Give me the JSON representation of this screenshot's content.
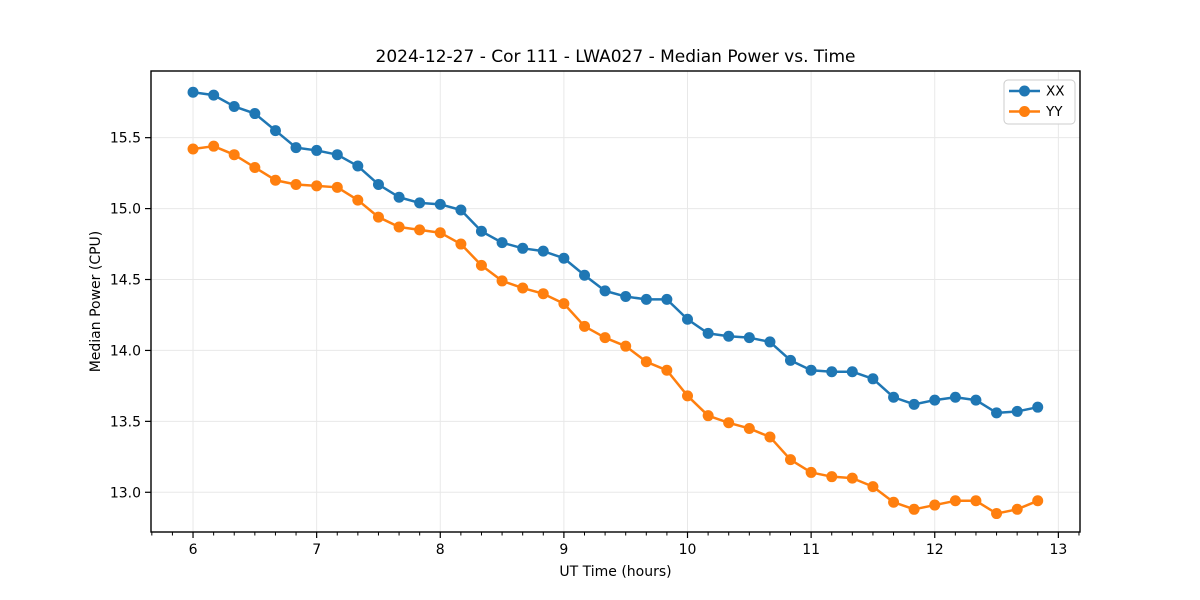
{
  "chart_data": {
    "type": "line",
    "title": "2024-12-27 - Cor 111 - LWA027 - Median Power vs. Time",
    "xlabel": "UT Time (hours)",
    "ylabel": "Median Power (CPU)",
    "xlim": [
      5.66,
      13.175
    ],
    "ylim": [
      12.72,
      15.97
    ],
    "grid": true,
    "legend_position": "upper right",
    "x_ticks": [
      6,
      7,
      8,
      9,
      10,
      11,
      12,
      13
    ],
    "x_tick_labels": [
      "6",
      "7",
      "8",
      "9",
      "10",
      "11",
      "12",
      "13"
    ],
    "x_minor_tick_step": 0.16667,
    "y_ticks": [
      13.0,
      13.5,
      14.0,
      14.5,
      15.0,
      15.5
    ],
    "y_tick_labels": [
      "13.0",
      "13.5",
      "14.0",
      "14.5",
      "15.0",
      "15.5"
    ],
    "x": [
      6.0,
      6.167,
      6.333,
      6.5,
      6.667,
      6.833,
      7.0,
      7.167,
      7.333,
      7.5,
      7.667,
      7.833,
      8.0,
      8.167,
      8.333,
      8.5,
      8.667,
      8.833,
      9.0,
      9.167,
      9.333,
      9.5,
      9.667,
      9.833,
      10.0,
      10.167,
      10.333,
      10.5,
      10.667,
      10.833,
      11.0,
      11.167,
      11.333,
      11.5,
      11.667,
      11.833,
      12.0,
      12.167,
      12.333,
      12.5,
      12.667,
      12.833
    ],
    "series": [
      {
        "name": "XX",
        "color": "#1f77b4",
        "values": [
          15.82,
          15.8,
          15.72,
          15.67,
          15.55,
          15.43,
          15.41,
          15.38,
          15.3,
          15.17,
          15.08,
          15.04,
          15.03,
          14.99,
          14.84,
          14.76,
          14.72,
          14.7,
          14.65,
          14.53,
          14.42,
          14.38,
          14.36,
          14.36,
          14.22,
          14.12,
          14.1,
          14.09,
          14.06,
          13.93,
          13.86,
          13.85,
          13.85,
          13.8,
          13.67,
          13.62,
          13.65,
          13.67,
          13.65,
          13.56,
          13.57,
          13.6
        ]
      },
      {
        "name": "YY",
        "color": "#ff7f0e",
        "values": [
          15.42,
          15.44,
          15.38,
          15.29,
          15.2,
          15.17,
          15.16,
          15.15,
          15.06,
          14.94,
          14.87,
          14.85,
          14.83,
          14.75,
          14.6,
          14.49,
          14.44,
          14.4,
          14.33,
          14.17,
          14.09,
          14.03,
          13.92,
          13.86,
          13.68,
          13.54,
          13.49,
          13.45,
          13.39,
          13.23,
          13.14,
          13.11,
          13.1,
          13.04,
          12.93,
          12.88,
          12.91,
          12.94,
          12.94,
          12.85,
          12.88,
          12.94
        ]
      }
    ]
  }
}
